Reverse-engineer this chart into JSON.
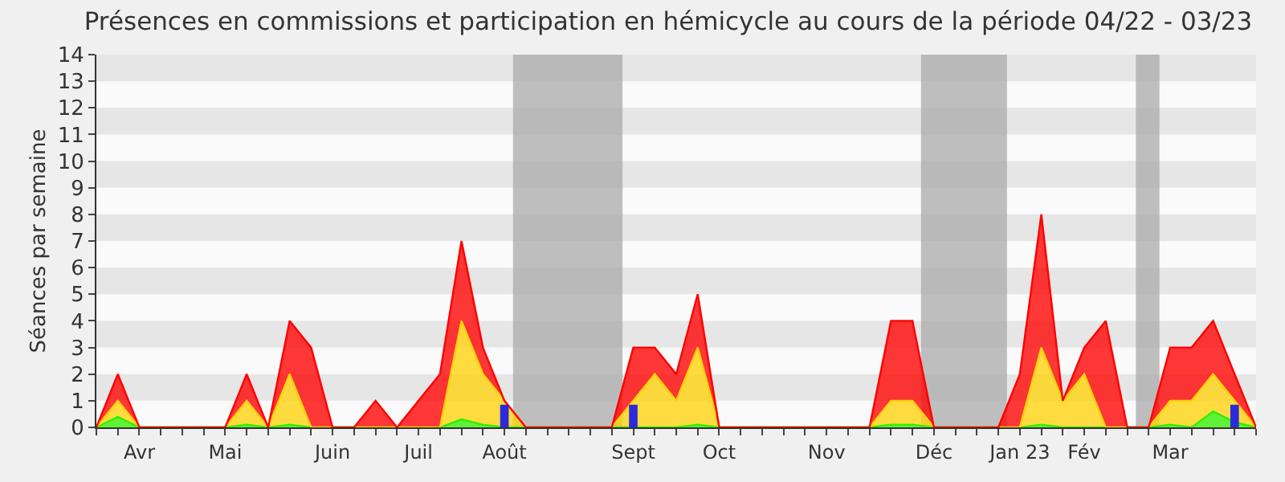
{
  "chart_data": {
    "type": "area",
    "title": "Présences en commissions et participation en hémicycle au cours de la période 04/22 - 03/23",
    "ylabel": "Séances par semaine",
    "categories": [
      null,
      null,
      "Avr",
      null,
      null,
      null,
      "Mai",
      null,
      null,
      null,
      null,
      "Juin",
      null,
      null,
      null,
      "Juil",
      null,
      null,
      null,
      "Août",
      null,
      null,
      null,
      null,
      null,
      "Sept",
      null,
      null,
      null,
      "Oct",
      null,
      null,
      null,
      null,
      "Nov",
      null,
      null,
      null,
      null,
      "Déc",
      null,
      null,
      null,
      "Jan 23",
      null,
      null,
      "Fév",
      null,
      null,
      null,
      "Mar",
      null,
      null,
      null,
      null
    ],
    "stacked": true,
    "series": [
      {
        "color": "#33ee00",
        "values": [
          0,
          0.4,
          0,
          0,
          0,
          0,
          0,
          0.1,
          0,
          0.1,
          0,
          0,
          0,
          0,
          0,
          0,
          0,
          0.3,
          0.1,
          0,
          0,
          0,
          0,
          0,
          0,
          0,
          0,
          0,
          0.1,
          0,
          0,
          0,
          0,
          0,
          0,
          0,
          0,
          0.1,
          0.1,
          0,
          0,
          0,
          0,
          0,
          0.1,
          0,
          0,
          0,
          0,
          0,
          0.1,
          0,
          0.6,
          0.2,
          0
        ]
      },
      {
        "color": "#ffd20a",
        "values": [
          0,
          0.6,
          0,
          0,
          0,
          0,
          0,
          0.9,
          0,
          1.9,
          0,
          0,
          0,
          0,
          0,
          0,
          0,
          3.7,
          1.9,
          1,
          0,
          0,
          0,
          0,
          0,
          1,
          2,
          1,
          2.9,
          0,
          0,
          0,
          0,
          0,
          0,
          0,
          0,
          0.9,
          0.9,
          0,
          0,
          0,
          0,
          0,
          2.9,
          1,
          2,
          0,
          0,
          0,
          0.9,
          1,
          1.4,
          0.8,
          0
        ]
      },
      {
        "color": "#ff0000",
        "values": [
          0,
          1,
          0,
          0,
          0,
          0,
          0,
          1,
          0,
          2,
          3,
          0,
          0,
          1,
          0,
          1,
          2,
          3,
          1,
          0,
          0,
          0,
          0,
          0,
          0,
          2,
          1,
          1,
          2,
          0,
          0,
          0,
          0,
          0,
          0,
          0,
          0,
          3,
          3,
          0,
          0,
          0,
          0,
          2,
          5,
          0,
          1,
          4,
          0,
          0,
          2,
          2,
          2,
          1,
          0
        ]
      },
      {
        "type": "bar",
        "color": "#2b2bd9",
        "values": [
          null,
          null,
          null,
          null,
          null,
          null,
          null,
          null,
          null,
          null,
          null,
          null,
          null,
          null,
          null,
          null,
          null,
          null,
          null,
          0.85,
          null,
          null,
          null,
          null,
          null,
          0.85,
          null,
          null,
          null,
          null,
          null,
          null,
          null,
          null,
          null,
          null,
          null,
          null,
          null,
          null,
          null,
          null,
          null,
          null,
          null,
          null,
          null,
          null,
          null,
          null,
          null,
          null,
          null,
          0.85,
          null
        ]
      }
    ],
    "ylim": [
      0,
      14
    ],
    "yticks": [
      0,
      1,
      2,
      3,
      4,
      5,
      6,
      7,
      8,
      9,
      10,
      11,
      12,
      13,
      14
    ]
  }
}
